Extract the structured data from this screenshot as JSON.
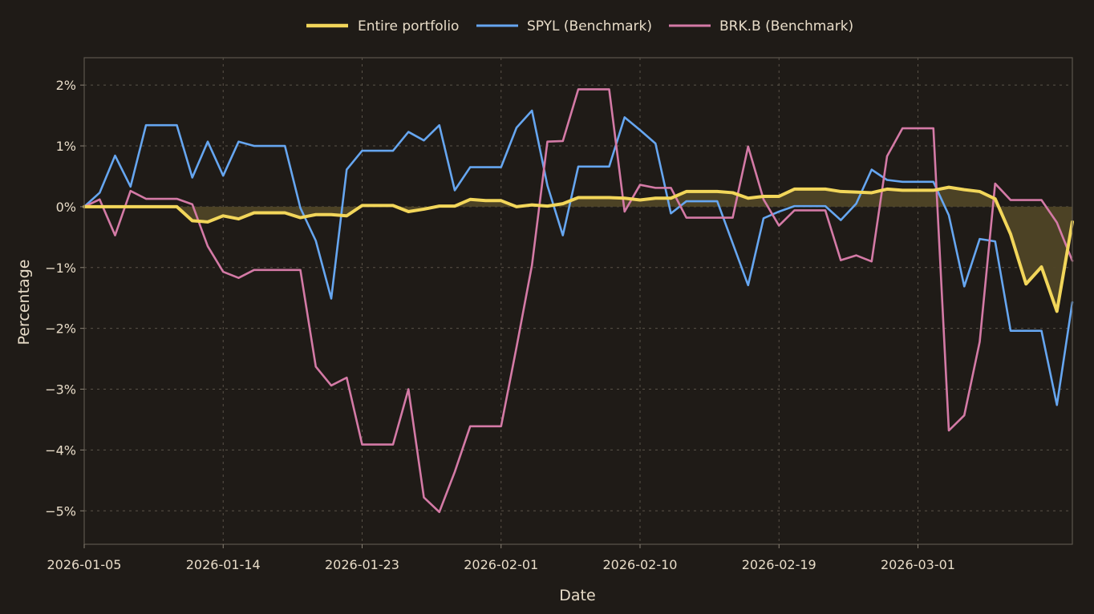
{
  "chart_data": {
    "type": "line",
    "xlabel": "Date",
    "ylabel": "Percentage",
    "x_ticks": [
      "2026-01-05",
      "2026-01-14",
      "2026-01-23",
      "2026-02-01",
      "2026-02-10",
      "2026-02-19",
      "2026-03-01"
    ],
    "y_ticks": [
      2,
      1,
      0,
      -1,
      -2,
      -3,
      -4,
      -5
    ],
    "y_tick_labels": [
      "2%",
      "1%",
      "0%",
      "−1%",
      "−2%",
      "−3%",
      "−4%",
      "−5%"
    ],
    "ylim": [
      -5.55,
      2.45
    ],
    "x_index_range": [
      0,
      64
    ],
    "x_tick_index": [
      0,
      9,
      18,
      27,
      36,
      45,
      54
    ],
    "grid": true,
    "legend_position": "top-center",
    "colors": {
      "portfolio": "#f2d65a",
      "spyl": "#66a6f0",
      "brk": "#d47aa6",
      "fill": "#4f4426",
      "grid": "#5a5348",
      "frame": "#5c564d",
      "bg": "#1f1b17"
    },
    "series": [
      {
        "key": "portfolio",
        "name": "Entire portfolio",
        "values": [
          0,
          0,
          0,
          0,
          0,
          0,
          0,
          -0.23,
          -0.25,
          -0.15,
          -0.2,
          -0.1,
          -0.1,
          -0.1,
          -0.18,
          -0.13,
          -0.13,
          -0.15,
          0.02,
          0.02,
          0.02,
          -0.08,
          -0.04,
          0.01,
          0.01,
          0.12,
          0.1,
          0.1,
          0,
          0.03,
          0.01,
          0.05,
          0.15,
          0.15,
          0.15,
          0.14,
          0.11,
          0.14,
          0.14,
          0.25,
          0.25,
          0.25,
          0.23,
          0.14,
          0.17,
          0.17,
          0.29,
          0.29,
          0.29,
          0.25,
          0.24,
          0.23,
          0.29,
          0.27,
          0.27,
          0.27,
          0.32,
          0.28,
          0.25,
          0.13,
          -0.45,
          -1.27,
          -0.99,
          -1.72,
          -0.25
        ]
      },
      {
        "key": "spyl",
        "name": "SPYL (Benchmark)",
        "values": [
          0,
          0.23,
          0.84,
          0.33,
          1.34,
          1.34,
          1.34,
          0.48,
          1.07,
          0.51,
          1.07,
          1.0,
          1.0,
          1.0,
          -0.02,
          -0.56,
          -1.51,
          0.61,
          0.92,
          0.92,
          0.92,
          1.23,
          1.09,
          1.34,
          0.27,
          0.65,
          0.65,
          0.65,
          1.3,
          1.58,
          0.35,
          -0.47,
          0.66,
          0.66,
          0.66,
          1.47,
          1.26,
          1.04,
          -0.11,
          0.09,
          0.09,
          0.09,
          -0.6,
          -1.29,
          -0.19,
          -0.08,
          0.01,
          0.01,
          0.01,
          -0.22,
          0.05,
          0.61,
          0.44,
          0.41,
          0.41,
          0.41,
          -0.14,
          -1.31,
          -0.53,
          -0.57,
          -2.04,
          -2.04,
          -2.04,
          -3.26,
          -1.57
        ]
      },
      {
        "key": "brk",
        "name": "BRK.B (Benchmark)",
        "values": [
          0,
          0.12,
          -0.47,
          0.26,
          0.13,
          0.13,
          0.13,
          0.04,
          -0.65,
          -1.07,
          -1.17,
          -1.04,
          -1.04,
          -1.04,
          -1.04,
          -2.63,
          -2.94,
          -2.81,
          -3.91,
          -3.91,
          -3.91,
          -3.0,
          -4.78,
          -5.02,
          -4.36,
          -3.61,
          -3.61,
          -3.61,
          -2.31,
          -0.96,
          1.07,
          1.08,
          1.93,
          1.93,
          1.93,
          -0.08,
          0.36,
          0.31,
          0.31,
          -0.18,
          -0.18,
          -0.18,
          -0.18,
          0.99,
          0.12,
          -0.31,
          -0.06,
          -0.06,
          -0.06,
          -0.88,
          -0.8,
          -0.9,
          0.83,
          1.29,
          1.29,
          1.29,
          -3.68,
          -3.43,
          -2.22,
          0.38,
          0.11,
          0.11,
          0.11,
          -0.26,
          -0.89
        ]
      }
    ]
  }
}
